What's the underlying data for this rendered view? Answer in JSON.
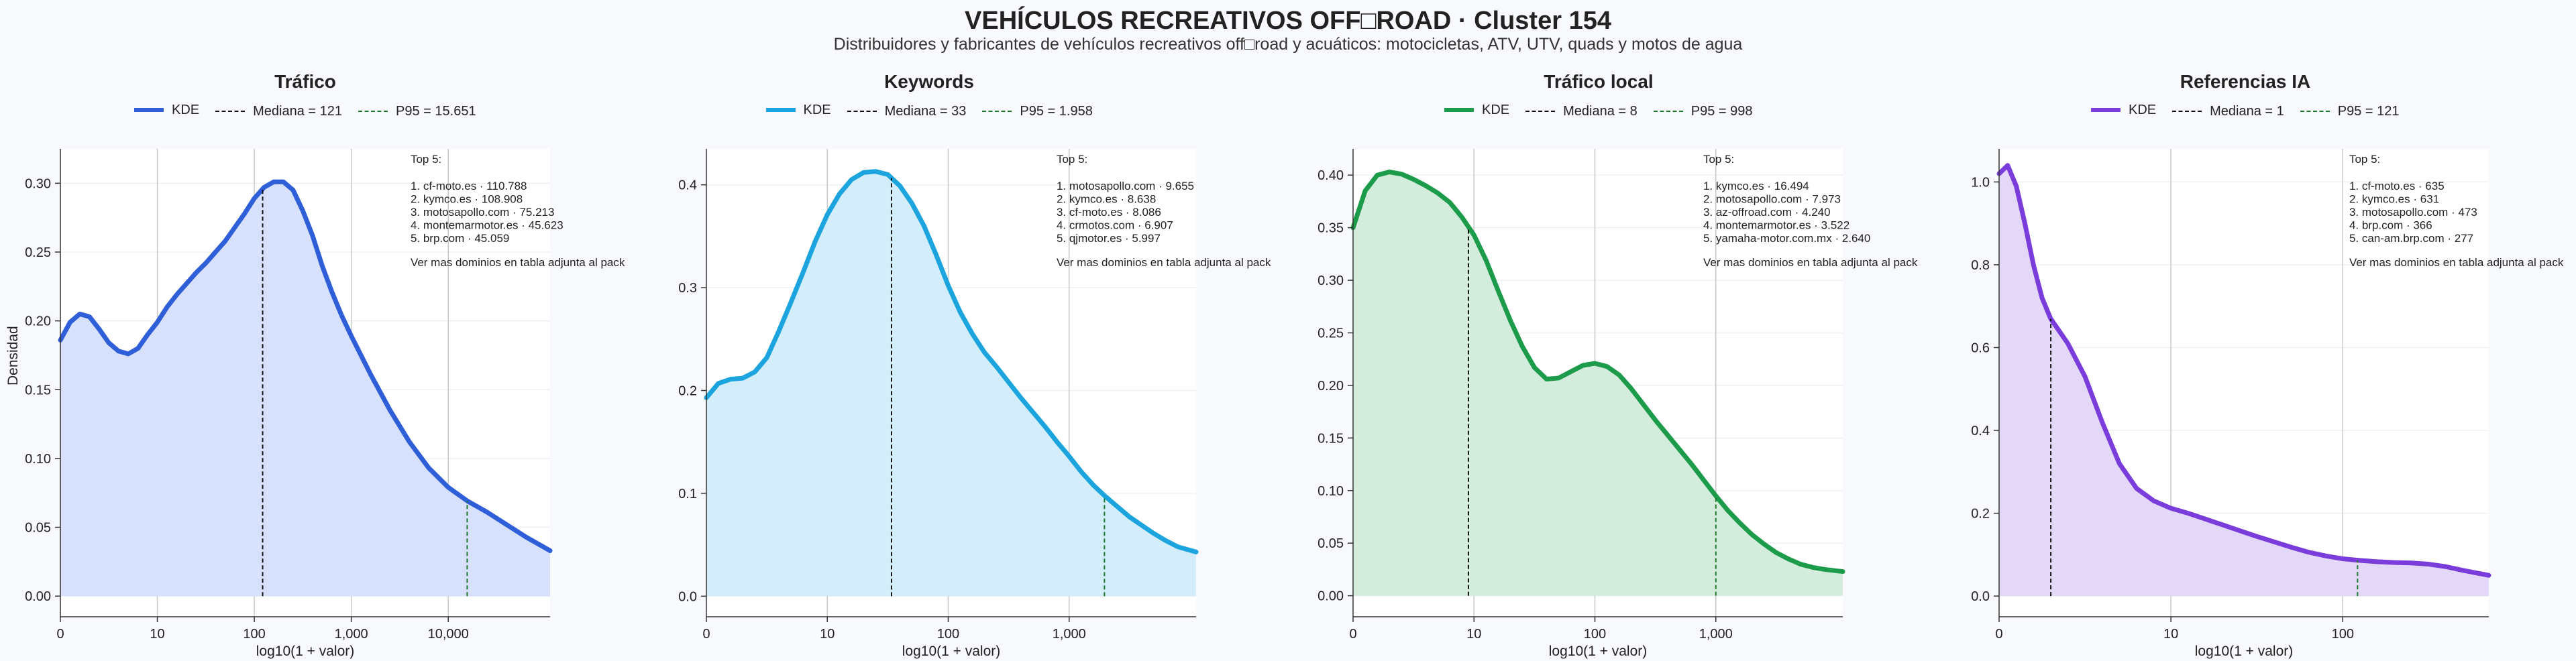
{
  "title": "VEHÍCULOS RECREATIVOS OFF□ROAD · Cluster 154",
  "subtitle": "Distribuidores y fabricantes de vehículos recreativos off□road y acuáticos: motocicletas, ATV, UTV, quads y motos de agua",
  "ylabel": "Densidad",
  "chart_data": [
    {
      "type": "area",
      "title": "Tráfico",
      "xlabel": "log10(1 + valor)",
      "color": "#2f5fd8",
      "fill": "#d8e1fb",
      "xlim": [
        0,
        5.05
      ],
      "ylim": [
        -0.015,
        0.325
      ],
      "yticks": [
        "0.00",
        "0.05",
        "0.10",
        "0.15",
        "0.20",
        "0.25",
        "0.30"
      ],
      "ytick_values": [
        0,
        0.05,
        0.1,
        0.15,
        0.2,
        0.25,
        0.3
      ],
      "xticks": [
        "0",
        "10",
        "100",
        "1,000",
        "10,000"
      ],
      "xtick_values": [
        0,
        1,
        2,
        3,
        4
      ],
      "legend": {
        "kde": "KDE",
        "median": "Mediana = 121",
        "p95": "P95 = 15.651"
      },
      "median": 2.086,
      "p95": 4.195,
      "x": [
        0,
        0.1,
        0.2,
        0.3,
        0.4,
        0.5,
        0.6,
        0.7,
        0.8,
        0.9,
        1,
        1.1,
        1.2,
        1.3,
        1.4,
        1.5,
        1.6,
        1.7,
        1.8,
        1.9,
        2,
        2.1,
        2.2,
        2.3,
        2.4,
        2.5,
        2.6,
        2.7,
        2.8,
        2.9,
        3,
        3.2,
        3.4,
        3.6,
        3.8,
        4,
        4.2,
        4.4,
        4.6,
        4.8,
        5.05
      ],
      "y": [
        0.186,
        0.199,
        0.205,
        0.203,
        0.194,
        0.184,
        0.178,
        0.176,
        0.18,
        0.19,
        0.199,
        0.21,
        0.219,
        0.227,
        0.235,
        0.242,
        0.25,
        0.258,
        0.268,
        0.278,
        0.289,
        0.297,
        0.301,
        0.301,
        0.295,
        0.28,
        0.262,
        0.24,
        0.221,
        0.204,
        0.189,
        0.161,
        0.135,
        0.112,
        0.093,
        0.079,
        0.069,
        0.061,
        0.052,
        0.043,
        0.033
      ],
      "top5_header": "Top 5:",
      "top5": [
        "1. cf-moto.es · 110.788",
        "2. kymco.es · 108.908",
        "3. motosapollo.com · 75.213",
        "4. montemarmotor.es · 45.623",
        "5. brp.com · 45.059"
      ],
      "note": "Ver mas dominios en tabla adjunta al pack"
    },
    {
      "type": "area",
      "title": "Keywords",
      "xlabel": "log10(1 + valor)",
      "color": "#1ba4dd",
      "fill": "#d3eefa",
      "xlim": [
        0,
        4.05
      ],
      "ylim": [
        -0.02,
        0.435
      ],
      "yticks": [
        "0.0",
        "0.1",
        "0.2",
        "0.3",
        "0.4"
      ],
      "ytick_values": [
        0,
        0.1,
        0.2,
        0.3,
        0.4
      ],
      "xticks": [
        "0",
        "10",
        "100",
        "1,000"
      ],
      "xtick_values": [
        0,
        1,
        2,
        3
      ],
      "legend": {
        "kde": "KDE",
        "median": "Mediana = 33",
        "p95": "P95 = 1.958"
      },
      "median": 1.531,
      "p95": 3.292,
      "x": [
        0,
        0.1,
        0.2,
        0.3,
        0.4,
        0.5,
        0.6,
        0.7,
        0.8,
        0.9,
        1,
        1.1,
        1.2,
        1.3,
        1.4,
        1.5,
        1.6,
        1.7,
        1.8,
        1.9,
        2,
        2.1,
        2.2,
        2.3,
        2.4,
        2.5,
        2.6,
        2.7,
        2.8,
        2.9,
        3,
        3.1,
        3.2,
        3.3,
        3.4,
        3.5,
        3.6,
        3.7,
        3.8,
        3.9,
        4.05
      ],
      "y": [
        0.193,
        0.207,
        0.211,
        0.212,
        0.218,
        0.232,
        0.258,
        0.286,
        0.315,
        0.345,
        0.371,
        0.391,
        0.405,
        0.412,
        0.413,
        0.41,
        0.399,
        0.382,
        0.36,
        0.332,
        0.302,
        0.276,
        0.255,
        0.237,
        0.223,
        0.208,
        0.193,
        0.179,
        0.165,
        0.15,
        0.136,
        0.121,
        0.108,
        0.097,
        0.087,
        0.077,
        0.069,
        0.061,
        0.054,
        0.048,
        0.043
      ],
      "top5_header": "Top 5:",
      "top5": [
        "1. motosapollo.com · 9.655",
        "2. kymco.es · 8.638",
        "3. cf-moto.es · 8.086",
        "4. crmotos.com · 6.907",
        "5. qjmotor.es · 5.997"
      ],
      "note": "Ver mas dominios en tabla adjunta al pack"
    },
    {
      "type": "area",
      "title": "Tráfico local",
      "xlabel": "log10(1 + valor)",
      "color": "#1c9c4a",
      "fill": "#d3ecdb",
      "xlim": [
        0,
        4.05
      ],
      "ylim": [
        -0.02,
        0.425
      ],
      "yticks": [
        "0.00",
        "0.05",
        "0.10",
        "0.15",
        "0.20",
        "0.25",
        "0.30",
        "0.35",
        "0.40"
      ],
      "ytick_values": [
        0,
        0.05,
        0.1,
        0.15,
        0.2,
        0.25,
        0.3,
        0.35,
        0.4
      ],
      "xticks": [
        "0",
        "10",
        "100",
        "1,000"
      ],
      "xtick_values": [
        0,
        1,
        2,
        3
      ],
      "legend": {
        "kde": "KDE",
        "median": "Mediana = 8",
        "p95": "P95 = 998"
      },
      "median": 0.954,
      "p95": 3.0,
      "x": [
        0,
        0.1,
        0.2,
        0.3,
        0.4,
        0.5,
        0.6,
        0.7,
        0.8,
        0.9,
        1,
        1.1,
        1.2,
        1.3,
        1.4,
        1.5,
        1.6,
        1.7,
        1.8,
        1.9,
        2,
        2.1,
        2.2,
        2.3,
        2.4,
        2.5,
        2.6,
        2.7,
        2.8,
        2.9,
        3,
        3.1,
        3.2,
        3.3,
        3.4,
        3.5,
        3.6,
        3.7,
        3.8,
        3.9,
        4.05
      ],
      "y": [
        0.35,
        0.385,
        0.4,
        0.403,
        0.401,
        0.396,
        0.39,
        0.383,
        0.374,
        0.36,
        0.343,
        0.319,
        0.29,
        0.262,
        0.237,
        0.217,
        0.206,
        0.207,
        0.213,
        0.219,
        0.221,
        0.218,
        0.21,
        0.197,
        0.182,
        0.167,
        0.153,
        0.139,
        0.125,
        0.11,
        0.095,
        0.081,
        0.069,
        0.058,
        0.049,
        0.041,
        0.035,
        0.03,
        0.027,
        0.025,
        0.023
      ],
      "top5_header": "Top 5:",
      "top5": [
        "1. kymco.es · 16.494",
        "2. motosapollo.com · 7.973",
        "3. az-offroad.com · 4.240",
        "4. montemarmotor.es · 3.522",
        "5. yamaha-motor.com.mx · 2.640"
      ],
      "note": "Ver mas dominios en tabla adjunta al pack"
    },
    {
      "type": "area",
      "title": "Referencias IA",
      "xlabel": "log10(1 + valor)",
      "color": "#7a3ddb",
      "fill": "#e3d8f8",
      "xlim": [
        0,
        2.85
      ],
      "ylim": [
        -0.05,
        1.08
      ],
      "yticks": [
        "0.0",
        "0.2",
        "0.4",
        "0.6",
        "0.8",
        "1.0"
      ],
      "ytick_values": [
        0,
        0.2,
        0.4,
        0.6,
        0.8,
        1.0
      ],
      "xticks": [
        "0",
        "10",
        "100"
      ],
      "xtick_values": [
        0,
        1,
        2
      ],
      "legend": {
        "kde": "KDE",
        "median": "Mediana = 1",
        "p95": "P95 = 121"
      },
      "median": 0.301,
      "p95": 2.086,
      "x": [
        0,
        0.05,
        0.1,
        0.15,
        0.2,
        0.25,
        0.3,
        0.35,
        0.4,
        0.5,
        0.6,
        0.7,
        0.8,
        0.9,
        1,
        1.1,
        1.2,
        1.3,
        1.4,
        1.5,
        1.6,
        1.7,
        1.8,
        1.9,
        2,
        2.1,
        2.2,
        2.3,
        2.4,
        2.5,
        2.6,
        2.7,
        2.85
      ],
      "y": [
        1.02,
        1.04,
        0.99,
        0.9,
        0.8,
        0.72,
        0.67,
        0.64,
        0.61,
        0.53,
        0.42,
        0.32,
        0.26,
        0.23,
        0.212,
        0.2,
        0.186,
        0.172,
        0.158,
        0.144,
        0.131,
        0.118,
        0.106,
        0.097,
        0.09,
        0.086,
        0.083,
        0.081,
        0.08,
        0.077,
        0.071,
        0.062,
        0.05
      ],
      "top5_header": "Top 5:",
      "top5": [
        "1. cf-moto.es · 635",
        "2. kymco.es · 631",
        "3. motosapollo.com · 473",
        "4. brp.com · 366",
        "5. can-am.brp.com · 277"
      ],
      "note": "Ver mas dominios en tabla adjunta al pack"
    }
  ]
}
